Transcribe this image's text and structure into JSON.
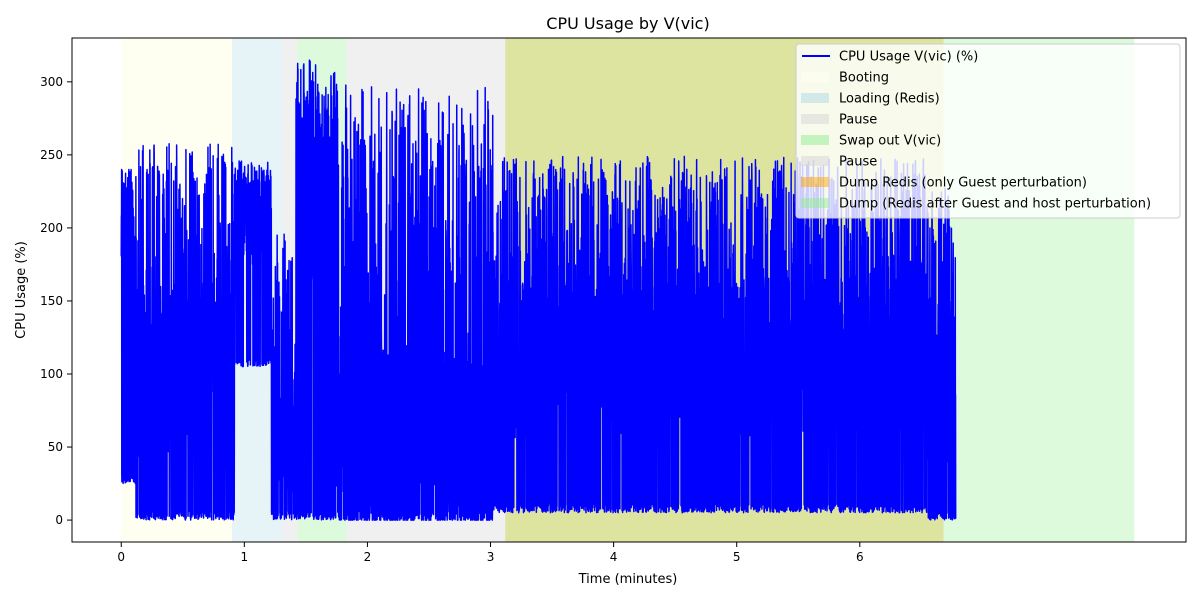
{
  "chart_data": {
    "type": "line",
    "title": "CPU Usage by V(vic)",
    "xlabel": "Time (minutes)",
    "ylabel": "CPU Usage (%)",
    "xlim": [
      -0.4,
      8.65
    ],
    "ylim": [
      -15,
      330
    ],
    "xticks": [
      0,
      1,
      2,
      3,
      4,
      5,
      6
    ],
    "yticks": [
      0,
      50,
      100,
      150,
      200,
      250,
      300
    ],
    "grid": false,
    "legend_position": "top-right",
    "colors": {
      "line": "#0000ff"
    },
    "series": [
      {
        "name": "CPU Usage V(vic) (%)",
        "color": "#0000ff",
        "segments": [
          {
            "x_start": 0.0,
            "x_end": 0.12,
            "low": 25,
            "high": 240,
            "typical": 200
          },
          {
            "x_start": 0.12,
            "x_end": 0.92,
            "low": 0,
            "high": 258,
            "typical": 100
          },
          {
            "x_start": 0.92,
            "x_end": 1.22,
            "low": 105,
            "high": 246,
            "typical": 205
          },
          {
            "x_start": 1.22,
            "x_end": 1.42,
            "low": 0,
            "high": 200,
            "typical": 60
          },
          {
            "x_start": 1.42,
            "x_end": 1.75,
            "low": 0,
            "high": 315,
            "typical": 220
          },
          {
            "x_start": 1.75,
            "x_end": 3.02,
            "low": 0,
            "high": 298,
            "typical": 50
          },
          {
            "x_start": 3.02,
            "x_end": 6.55,
            "low": 5,
            "high": 249,
            "typical": 110
          },
          {
            "x_start": 6.55,
            "x_end": 6.78,
            "low": 0,
            "high": 233,
            "typical": 90
          }
        ]
      }
    ],
    "regions": [
      {
        "label": "Booting",
        "x_start": 0.0,
        "x_end": 0.9,
        "color": "#fffff0",
        "opacity": 0.9
      },
      {
        "label": "Loading (Redis)",
        "x_start": 0.9,
        "x_end": 1.31,
        "color": "#add8e6",
        "opacity": 0.3
      },
      {
        "label": "Pause",
        "x_start": 1.31,
        "x_end": 1.43,
        "color": "#d3d3d3",
        "opacity": 0.35
      },
      {
        "label": "Swap out V(vic)",
        "x_start": 1.43,
        "x_end": 1.83,
        "color": "#90ee90",
        "opacity": 0.3
      },
      {
        "label": "Pause",
        "x_start": 1.83,
        "x_end": 3.12,
        "color": "#d3d3d3",
        "opacity": 0.35
      },
      {
        "label": "Dump Redis (only Guest perturbation)",
        "x_start": 3.12,
        "x_end": 6.68,
        "color": "#ffa500",
        "opacity": 0.35
      },
      {
        "label": "Dump (Redis after Guest and host perturbation)",
        "x_start": 3.12,
        "x_end": 8.23,
        "color": "#90ee90",
        "opacity": 0.3
      }
    ],
    "legend": [
      {
        "label": "CPU Usage V(vic) (%)",
        "kind": "line",
        "color": "#0000ff"
      },
      {
        "label": "Booting",
        "kind": "patch",
        "color": "#fffff0"
      },
      {
        "label": "Loading (Redis)",
        "kind": "patch",
        "color": "#add8e6"
      },
      {
        "label": "Pause",
        "kind": "patch",
        "color": "#d3d3d3"
      },
      {
        "label": "Swap out V(vic)",
        "kind": "patch",
        "color": "#90ee90"
      },
      {
        "label": "Pause",
        "kind": "patch",
        "color": "#d3d3d3"
      },
      {
        "label": "Dump Redis (only Guest perturbation)",
        "kind": "patch",
        "color": "#ffa500"
      },
      {
        "label": "Dump (Redis after Guest and host perturbation)",
        "kind": "patch",
        "color": "#90ee90"
      }
    ]
  }
}
